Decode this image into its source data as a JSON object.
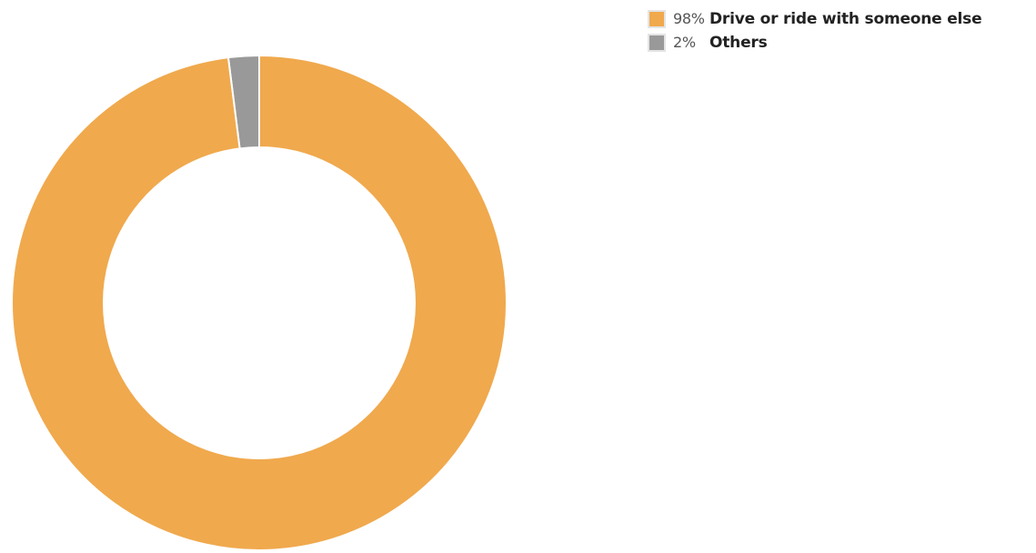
{
  "chart_data": {
    "type": "pie",
    "donut": true,
    "series": [
      {
        "name": "Drive or ride with someone else",
        "value": 98,
        "percent_label": "98%",
        "color": "#F0A94D"
      },
      {
        "name": "Others",
        "value": 2,
        "percent_label": "2%",
        "color": "#999999"
      }
    ],
    "legend_position": "top-right",
    "slice_border_color": "#ffffff"
  }
}
